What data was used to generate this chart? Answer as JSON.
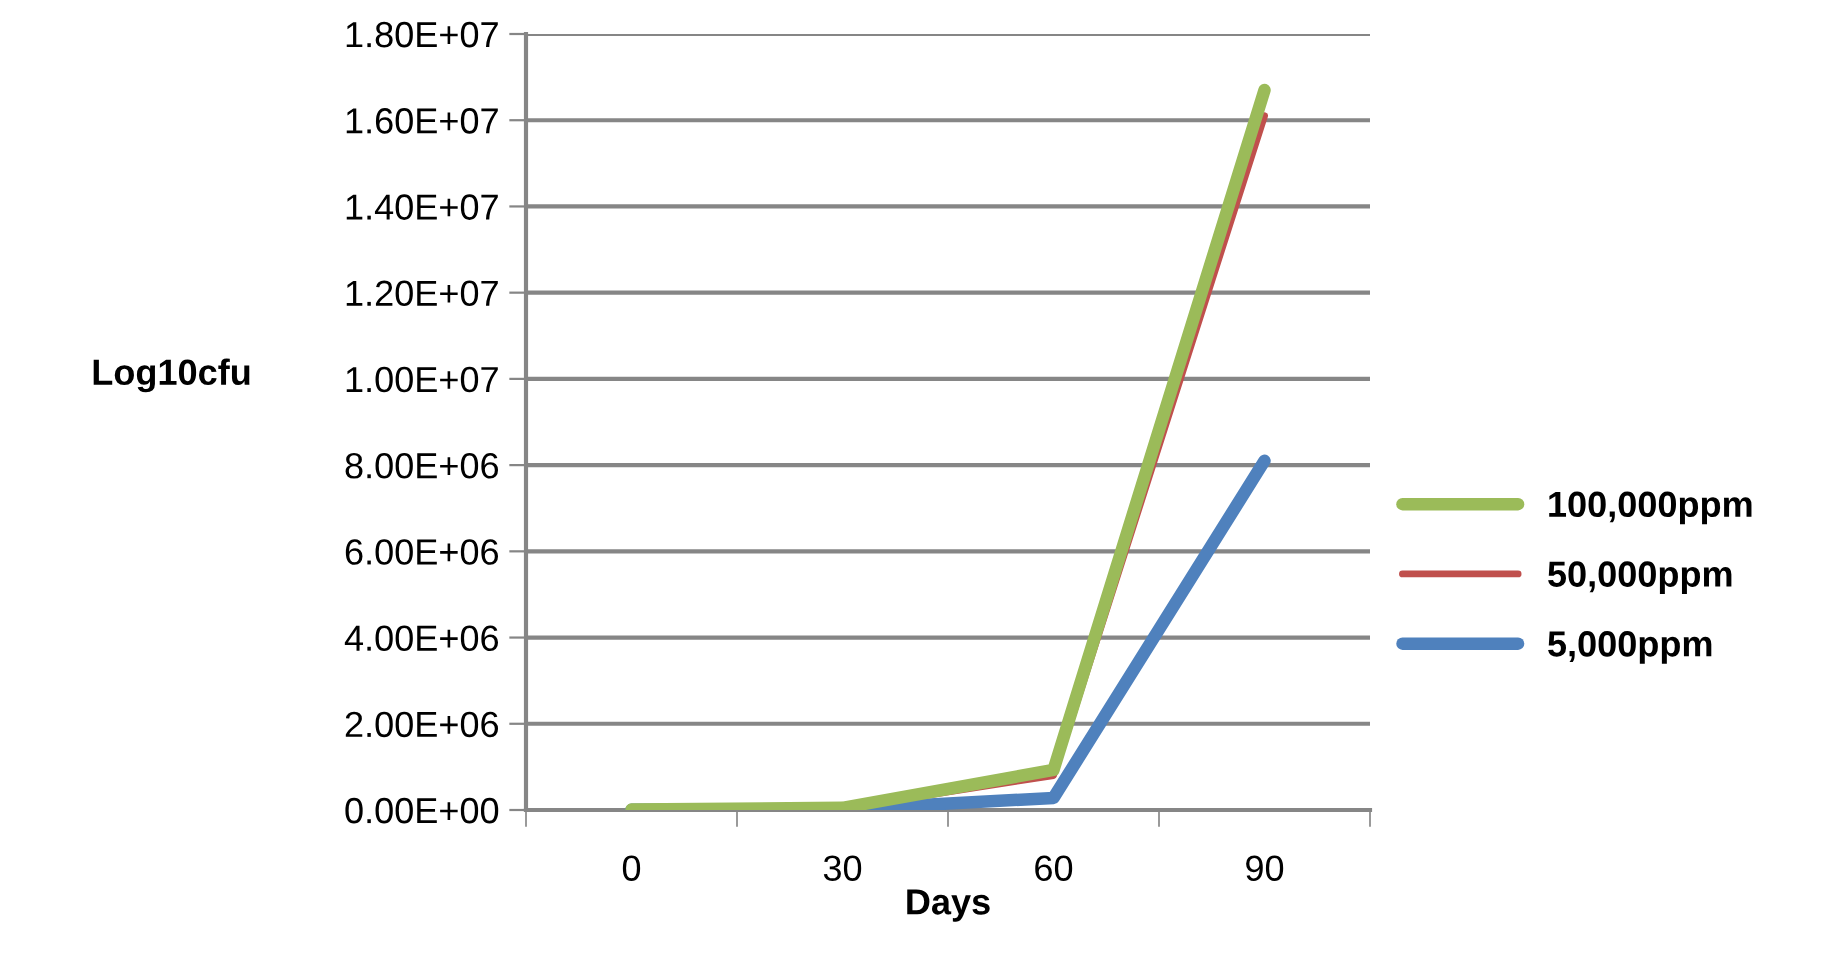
{
  "chart_data": {
    "type": "line",
    "xlabel": "Days",
    "ylabel": "Log10cfu",
    "categories": [
      "0",
      "30",
      "60",
      "90"
    ],
    "series": [
      {
        "name": "100,000ppm",
        "color": "#9bbb59",
        "values": [
          10000,
          50000,
          930000,
          16700000
        ]
      },
      {
        "name": "50,000ppm",
        "color": "#c0504d",
        "values": [
          10000,
          40000,
          800000,
          16100000
        ]
      },
      {
        "name": "5,000ppm",
        "color": "#4f81bd",
        "values": [
          5000,
          20000,
          280000,
          8100000
        ]
      }
    ],
    "ylim": [
      0,
      18000000
    ],
    "yticks": [
      {
        "value": 0,
        "label": "0.00E+00"
      },
      {
        "value": 2000000,
        "label": "2.00E+06"
      },
      {
        "value": 4000000,
        "label": "4.00E+06"
      },
      {
        "value": 6000000,
        "label": "6.00E+06"
      },
      {
        "value": 8000000,
        "label": "8.00E+06"
      },
      {
        "value": 10000000,
        "label": "1.00E+07"
      },
      {
        "value": 12000000,
        "label": "1.20E+07"
      },
      {
        "value": 14000000,
        "label": "1.40E+07"
      },
      {
        "value": 16000000,
        "label": "1.60E+07"
      },
      {
        "value": 18000000,
        "label": "1.80E+07"
      }
    ],
    "grid": "y",
    "legend": "right",
    "marker": "none",
    "line_style": "solid"
  }
}
